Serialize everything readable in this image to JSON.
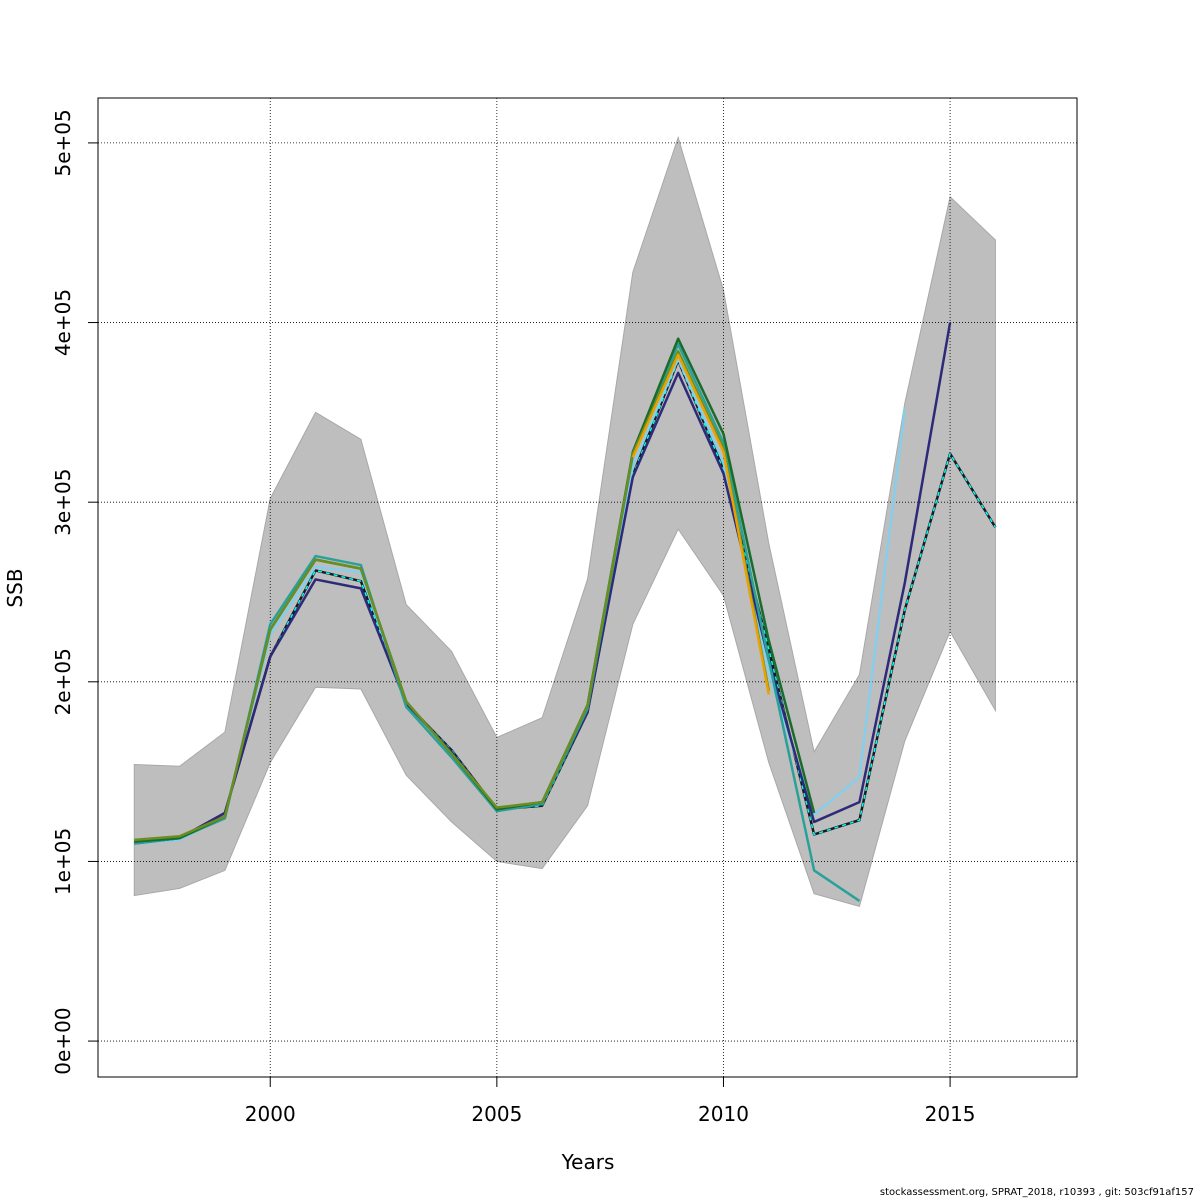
{
  "chart_data": {
    "type": "line",
    "title": "",
    "xlabel": "Years",
    "ylabel": "SSB",
    "xlim": [
      1996.2,
      2017.8
    ],
    "ylim": [
      -20000,
      525000
    ],
    "x_ticks": [
      2000,
      2005,
      2010,
      2015
    ],
    "x_tick_labels": [
      "2000",
      "2005",
      "2010",
      "2015"
    ],
    "y_ticks": [
      0,
      100000,
      200000,
      300000,
      400000,
      500000
    ],
    "y_tick_labels": [
      "0e+00",
      "1e+05",
      "2e+05",
      "3e+05",
      "4e+05",
      "5e+05"
    ],
    "grid": true,
    "confidence_band": {
      "color": "#bebebe",
      "x": [
        1997,
        1998,
        1999,
        2000,
        2001,
        2002,
        2003,
        2004,
        2005,
        2006,
        2007,
        2008,
        2009,
        2010,
        2011,
        2012,
        2013,
        2014,
        2015,
        2016
      ],
      "lower": [
        81000,
        85000,
        95000,
        155000,
        197000,
        196000,
        148000,
        122000,
        100000,
        96000,
        131000,
        232000,
        285000,
        248000,
        155000,
        82000,
        75000,
        167000,
        228000,
        184000
      ],
      "upper": [
        154000,
        153000,
        172000,
        302000,
        350000,
        335000,
        243000,
        217000,
        169000,
        180000,
        257000,
        428000,
        503000,
        418000,
        277000,
        161000,
        204000,
        355000,
        470000,
        446000
      ]
    },
    "series": [
      {
        "color": "#1a1a1a",
        "style": "solid",
        "x": [
          1997,
          1998,
          1999,
          2000,
          2001,
          2002,
          2003,
          2004,
          2005,
          2006,
          2007,
          2008,
          2009,
          2010,
          2011,
          2012,
          2013,
          2014,
          2015,
          2016
        ],
        "values": [
          111000,
          113000,
          127000,
          214000,
          262000,
          256000,
          188000,
          162000,
          129000,
          131000,
          183000,
          315000,
          379000,
          318000,
          218000,
          115000,
          123000,
          240000,
          327000,
          286000
        ]
      },
      {
        "color": "#00ffff",
        "style": "dashed",
        "x": [
          1997,
          1998,
          1999,
          2000,
          2001,
          2002,
          2003,
          2004,
          2005,
          2006,
          2007,
          2008,
          2009,
          2010,
          2011,
          2012,
          2013,
          2014,
          2015,
          2016
        ],
        "values": [
          111000,
          113000,
          127000,
          214000,
          262000,
          256000,
          188000,
          162000,
          129000,
          131000,
          183000,
          315000,
          379000,
          318000,
          218000,
          115000,
          123000,
          240000,
          327000,
          286000
        ]
      },
      {
        "color": "#87ceeb",
        "style": "solid",
        "x": [
          1997,
          1998,
          1999,
          2000,
          2001,
          2002,
          2003,
          2004,
          2005,
          2006,
          2007,
          2008,
          2009,
          2010,
          2011,
          2012,
          2013,
          2014
        ],
        "values": [
          110000,
          112000,
          125000,
          226000,
          264000,
          261000,
          188000,
          160000,
          128000,
          133000,
          185000,
          320000,
          380000,
          322000,
          205000,
          126000,
          147000,
          352000
        ]
      },
      {
        "color": "#2e2a7a",
        "style": "solid",
        "x": [
          1997,
          1998,
          1999,
          2000,
          2001,
          2002,
          2003,
          2004,
          2005,
          2006,
          2007,
          2008,
          2009,
          2010,
          2011,
          2012,
          2013,
          2014,
          2015
        ],
        "values": [
          110000,
          113000,
          127000,
          214000,
          257000,
          252000,
          188000,
          161000,
          129000,
          133000,
          183000,
          314000,
          372000,
          316000,
          212000,
          122000,
          133000,
          255000,
          400000
        ]
      },
      {
        "color": "#2aa198",
        "style": "solid",
        "x": [
          1997,
          1998,
          1999,
          2000,
          2001,
          2002,
          2003,
          2004,
          2005,
          2006,
          2007,
          2008,
          2009,
          2010,
          2011,
          2012,
          2013
        ],
        "values": [
          110000,
          113000,
          124000,
          232000,
          270000,
          265000,
          186000,
          158000,
          128000,
          132000,
          185000,
          326000,
          388000,
          333000,
          212000,
          95000,
          78000
        ]
      },
      {
        "color": "#1b6b2a",
        "style": "solid",
        "x": [
          1997,
          1998,
          1999,
          2000,
          2001,
          2002,
          2003,
          2004,
          2005,
          2006,
          2007,
          2008,
          2009,
          2010,
          2011,
          2012
        ],
        "values": [
          111000,
          113000,
          125000,
          229000,
          268000,
          263000,
          189000,
          160000,
          129000,
          133000,
          187000,
          328000,
          391000,
          338000,
          223000,
          127000
        ]
      },
      {
        "color": "#6b8e23",
        "style": "solid",
        "x": [
          1997,
          1998,
          1999,
          2000,
          2001,
          2002,
          2003,
          2004,
          2005,
          2006,
          2007,
          2008,
          2009,
          2010,
          2011
        ],
        "values": [
          112000,
          114000,
          125000,
          229000,
          268000,
          263000,
          189000,
          160000,
          130000,
          133000,
          187000,
          327000,
          384000,
          330000,
          195000
        ]
      },
      {
        "color": "#e8a200",
        "style": "solid",
        "x": [
          2008,
          2009,
          2010,
          2011
        ],
        "values": [
          325000,
          382000,
          328000,
          193000
        ]
      }
    ]
  },
  "footer": "stockassessment.org, SPRAT_2018, r10393 , git: 503cf91af157"
}
